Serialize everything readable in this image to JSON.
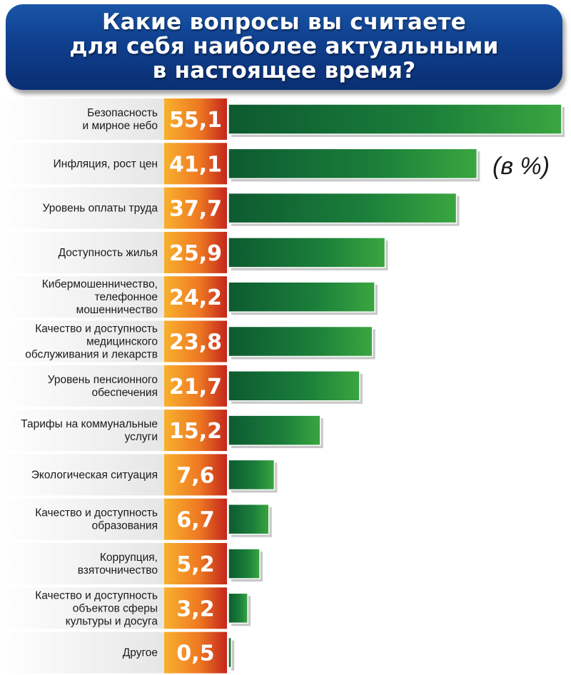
{
  "title": "Какие вопросы вы считаете\nдля себя наиболее актуальными\nв настоящее время?",
  "unit_note": "(в %)",
  "colors": {
    "header": "#0f3f8e",
    "bar": "#1e8a3a",
    "value_box_left": "#f6a623",
    "value_box_right": "#c8281e"
  },
  "chart_data": {
    "type": "bar",
    "orientation": "horizontal",
    "categories": [
      [
        "Безопасность",
        "и мирное небо"
      ],
      [
        "Инфляция, рост цен"
      ],
      [
        "Уровень оплаты труда"
      ],
      [
        "Доступность жилья"
      ],
      [
        "Кибермошенничество,",
        "телефонное",
        "мошенничество"
      ],
      [
        "Качество и доступность",
        "медицинского",
        "обслуживания и лекарств"
      ],
      [
        "Уровень пенсионного",
        "обеспечения"
      ],
      [
        "Тарифы на коммунальные",
        "услуги"
      ],
      [
        "Экологическая ситуация"
      ],
      [
        "Качество и доступность",
        "образования"
      ],
      [
        "Коррупция,",
        "взяточничество"
      ],
      [
        "Качество и доступность",
        "объектов сферы",
        "культуры и досуга"
      ],
      [
        "Другое"
      ]
    ],
    "values": [
      55.1,
      41.1,
      37.7,
      25.9,
      24.2,
      23.8,
      21.7,
      15.2,
      7.6,
      6.7,
      5.2,
      3.2,
      0.5
    ],
    "value_labels": [
      "55,1",
      "41,1",
      "37,7",
      "25,9",
      "24,2",
      "23,8",
      "21,7",
      "15,2",
      "7,6",
      "6,7",
      "5,2",
      "3,2",
      "0,5"
    ],
    "xlim": [
      0,
      55.1
    ],
    "grid": false,
    "legend": "none"
  }
}
